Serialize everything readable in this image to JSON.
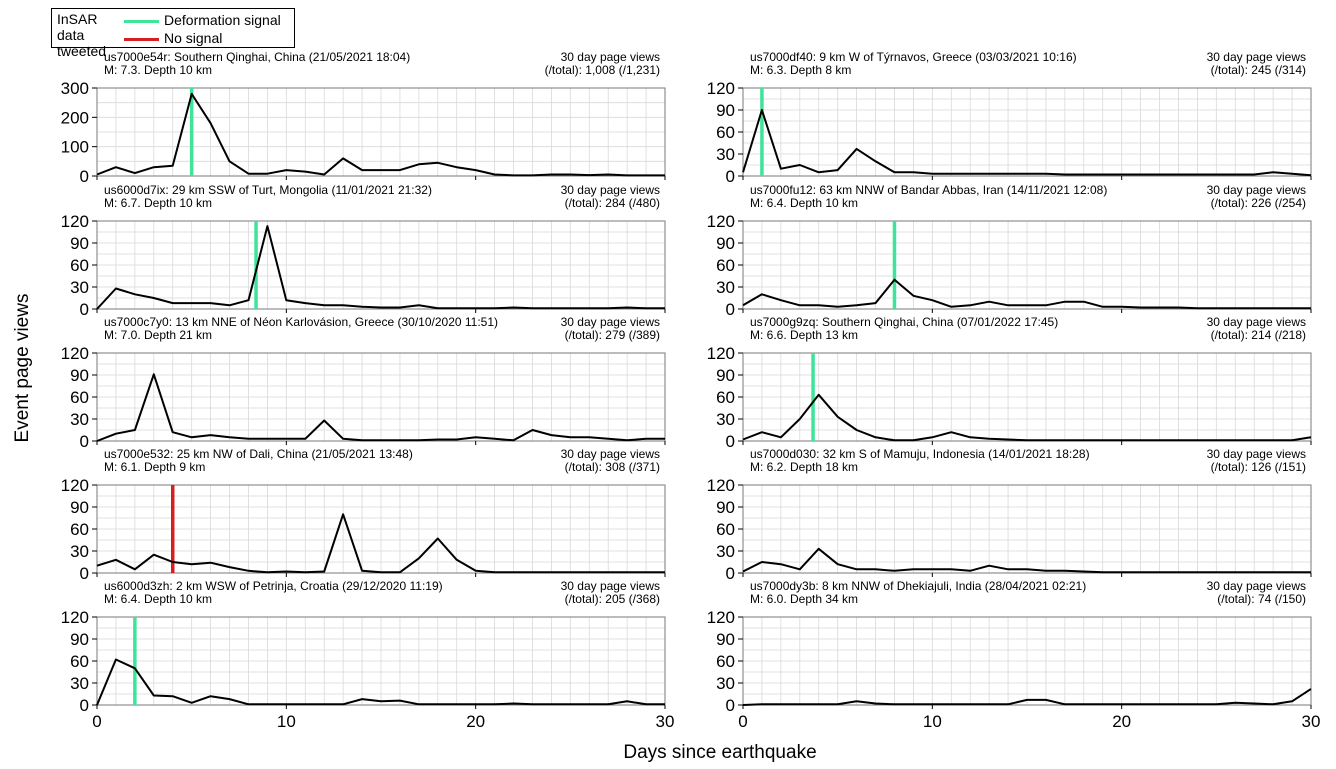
{
  "legend": {
    "title": "InSAR data tweeted",
    "items": [
      {
        "label": "Deformation signal",
        "color": "#3ee49a"
      },
      {
        "label": "No signal",
        "color": "#d62020"
      }
    ]
  },
  "axes": {
    "xlabel": "Days since earthquake",
    "ylabel": "Event page views"
  },
  "chart_data": [
    {
      "type": "line",
      "id": "us7000e54r",
      "header": "us7000e54r: Southern Qinghai, China (21/05/2021 18:04)",
      "mag_depth": "M: 7.3. Depth 10 km",
      "views_label": "30 day page views",
      "views_value": "(/total): 1,008 (/1,231)",
      "ylim": [
        0,
        300
      ],
      "yticks": [
        0,
        100,
        200,
        300
      ],
      "xlim": [
        0,
        30
      ],
      "xticks": [
        0,
        10,
        20,
        30
      ],
      "grid": true,
      "signal_day": 5,
      "signal_type": "Deformation signal",
      "x": [
        0,
        1,
        2,
        3,
        4,
        5,
        6,
        7,
        8,
        9,
        10,
        11,
        12,
        13,
        14,
        15,
        16,
        17,
        18,
        19,
        20,
        21,
        22,
        23,
        24,
        25,
        26,
        27,
        28,
        29,
        30
      ],
      "values": [
        5,
        30,
        10,
        30,
        35,
        280,
        180,
        50,
        8,
        8,
        20,
        15,
        5,
        60,
        20,
        20,
        20,
        40,
        45,
        30,
        20,
        5,
        2,
        2,
        5,
        5,
        3,
        5,
        2,
        2,
        2
      ]
    },
    {
      "type": "line",
      "id": "us7000df40",
      "header": "us7000df40: 9 km W of Týrnavos, Greece (03/03/2021 10:16)",
      "mag_depth": "M: 6.3. Depth 8 km",
      "views_label": "30 day page views",
      "views_value": "(/total):  245 (/314)",
      "ylim": [
        0,
        120
      ],
      "yticks": [
        0,
        30,
        60,
        90,
        120
      ],
      "xlim": [
        0,
        30
      ],
      "xticks": [
        0,
        10,
        20,
        30
      ],
      "grid": true,
      "signal_day": 1,
      "signal_type": "Deformation signal",
      "x": [
        0,
        1,
        2,
        3,
        4,
        5,
        6,
        7,
        8,
        9,
        10,
        11,
        12,
        13,
        14,
        15,
        16,
        17,
        18,
        19,
        20,
        21,
        22,
        23,
        24,
        25,
        26,
        27,
        28,
        29,
        30
      ],
      "values": [
        5,
        90,
        10,
        15,
        5,
        8,
        37,
        20,
        5,
        5,
        3,
        3,
        3,
        3,
        3,
        3,
        3,
        2,
        2,
        2,
        2,
        2,
        2,
        2,
        2,
        2,
        2,
        2,
        5,
        3,
        1
      ]
    },
    {
      "type": "line",
      "id": "us6000d7ix",
      "header": "us6000d7ix: 29 km SSW of Turt, Mongolia (11/01/2021 21:32)",
      "mag_depth": "M: 6.7. Depth 10 km",
      "views_label": "30 day page views",
      "views_value": "(/total): 284 (/480)",
      "ylim": [
        0,
        120
      ],
      "yticks": [
        0,
        30,
        60,
        90,
        120
      ],
      "xlim": [
        0,
        30
      ],
      "xticks": [
        0,
        10,
        20,
        30
      ],
      "grid": true,
      "signal_day": 8.4,
      "signal_type": "Deformation signal",
      "x": [
        0,
        1,
        2,
        3,
        4,
        5,
        6,
        7,
        8,
        9,
        10,
        11,
        12,
        13,
        14,
        15,
        16,
        17,
        18,
        19,
        20,
        21,
        22,
        23,
        24,
        25,
        26,
        27,
        28,
        29,
        30
      ],
      "values": [
        0,
        28,
        20,
        15,
        8,
        8,
        8,
        5,
        12,
        113,
        12,
        8,
        5,
        5,
        3,
        2,
        2,
        5,
        1,
        1,
        1,
        1,
        2,
        1,
        1,
        1,
        1,
        1,
        2,
        1,
        1
      ]
    },
    {
      "type": "line",
      "id": "us7000fu12",
      "header": "us7000fu12: 63 km NNW of Bandar Abbas, Iran (14/11/2021 12:08)",
      "mag_depth": "M: 6.4. Depth 10 km",
      "views_label": "30 day page views",
      "views_value": "(/total):  226 (/254)",
      "ylim": [
        0,
        120
      ],
      "yticks": [
        0,
        30,
        60,
        90,
        120
      ],
      "xlim": [
        0,
        30
      ],
      "xticks": [
        0,
        10,
        20,
        30
      ],
      "grid": true,
      "signal_day": 8,
      "signal_type": "Deformation signal",
      "x": [
        0,
        1,
        2,
        3,
        4,
        5,
        6,
        7,
        8,
        9,
        10,
        11,
        12,
        13,
        14,
        15,
        16,
        17,
        18,
        19,
        20,
        21,
        22,
        23,
        24,
        25,
        26,
        27,
        28,
        29,
        30
      ],
      "values": [
        5,
        20,
        12,
        5,
        5,
        3,
        5,
        8,
        40,
        18,
        12,
        3,
        5,
        10,
        5,
        5,
        5,
        10,
        10,
        3,
        3,
        2,
        2,
        2,
        1,
        1,
        1,
        1,
        1,
        1,
        1
      ]
    },
    {
      "type": "line",
      "id": "us7000c7y0",
      "header": "us7000c7y0: 13 km NNE of Néon Karlovásion, Greece (30/10/2020 11:51)",
      "mag_depth": "M: 7.0. Depth 21 km",
      "views_label": "30 day page views",
      "views_value": "(/total):  279 (/389)",
      "ylim": [
        0,
        120
      ],
      "yticks": [
        0,
        30,
        60,
        90,
        120
      ],
      "xlim": [
        0,
        30
      ],
      "xticks": [
        0,
        10,
        20,
        30
      ],
      "grid": true,
      "signal_day": null,
      "signal_type": null,
      "x": [
        0,
        1,
        2,
        3,
        4,
        5,
        6,
        7,
        8,
        9,
        10,
        11,
        12,
        13,
        14,
        15,
        16,
        17,
        18,
        19,
        20,
        21,
        22,
        23,
        24,
        25,
        26,
        27,
        28,
        29,
        30
      ],
      "values": [
        0,
        10,
        15,
        91,
        12,
        5,
        8,
        5,
        3,
        3,
        3,
        3,
        28,
        3,
        1,
        1,
        1,
        1,
        2,
        2,
        5,
        3,
        1,
        15,
        8,
        5,
        5,
        3,
        1,
        3,
        3
      ]
    },
    {
      "type": "line",
      "id": "us7000g9zq",
      "header": "us7000g9zq: Southern Qinghai, China (07/01/2022 17:45)",
      "mag_depth": "M: 6.6. Depth 13 km",
      "views_label": "30 day page views",
      "views_value": "(/total): 214 (/218)",
      "ylim": [
        0,
        120
      ],
      "yticks": [
        0,
        30,
        60,
        90,
        120
      ],
      "xlim": [
        0,
        30
      ],
      "xticks": [
        0,
        10,
        20,
        30
      ],
      "grid": true,
      "signal_day": 3.7,
      "signal_type": "Deformation signal",
      "x": [
        0,
        1,
        2,
        3,
        4,
        5,
        6,
        7,
        8,
        9,
        10,
        11,
        12,
        13,
        14,
        15,
        16,
        17,
        18,
        19,
        20,
        21,
        22,
        23,
        24,
        25,
        26,
        27,
        28,
        29,
        30
      ],
      "values": [
        2,
        12,
        5,
        30,
        63,
        33,
        15,
        5,
        1,
        1,
        5,
        12,
        5,
        3,
        2,
        1,
        1,
        1,
        1,
        1,
        1,
        1,
        1,
        1,
        1,
        1,
        1,
        1,
        1,
        1,
        5
      ]
    },
    {
      "type": "line",
      "id": "us7000e532",
      "header": "us7000e532: 25 km NW of Dali, China (21/05/2021 13:48)",
      "mag_depth": "M: 6.1. Depth 9 km",
      "views_label": "30 day page views",
      "views_value": "(/total):  308 (/371)",
      "ylim": [
        0,
        120
      ],
      "yticks": [
        0,
        30,
        60,
        90,
        120
      ],
      "xlim": [
        0,
        30
      ],
      "xticks": [
        0,
        10,
        20,
        30
      ],
      "grid": true,
      "signal_day": 4,
      "signal_type": "No signal",
      "x": [
        0,
        1,
        2,
        3,
        4,
        5,
        6,
        7,
        8,
        9,
        10,
        11,
        12,
        13,
        14,
        15,
        16,
        17,
        18,
        19,
        20,
        21,
        22,
        23,
        24,
        25,
        26,
        27,
        28,
        29,
        30
      ],
      "values": [
        10,
        18,
        5,
        25,
        15,
        12,
        14,
        8,
        3,
        1,
        2,
        1,
        2,
        80,
        3,
        1,
        1,
        20,
        47,
        18,
        3,
        1,
        1,
        1,
        1,
        1,
        1,
        1,
        1,
        1,
        1
      ]
    },
    {
      "type": "line",
      "id": "us7000d030",
      "header": "us7000d030: 32 km S of Mamuju, Indonesia (14/01/2021 18:28)",
      "mag_depth": "M: 6.2. Depth 18 km",
      "views_label": "30 day page views",
      "views_value": "(/total): 126 (/151)",
      "ylim": [
        0,
        120
      ],
      "yticks": [
        0,
        30,
        60,
        90,
        120
      ],
      "xlim": [
        0,
        30
      ],
      "xticks": [
        0,
        10,
        20,
        30
      ],
      "grid": true,
      "signal_day": null,
      "signal_type": null,
      "x": [
        0,
        1,
        2,
        3,
        4,
        5,
        6,
        7,
        8,
        9,
        10,
        11,
        12,
        13,
        14,
        15,
        16,
        17,
        18,
        19,
        20,
        21,
        22,
        23,
        24,
        25,
        26,
        27,
        28,
        29,
        30
      ],
      "values": [
        2,
        15,
        12,
        5,
        33,
        12,
        5,
        5,
        3,
        5,
        5,
        5,
        3,
        10,
        5,
        5,
        3,
        3,
        2,
        1,
        1,
        1,
        1,
        1,
        1,
        1,
        1,
        1,
        1,
        1,
        1
      ]
    },
    {
      "type": "line",
      "id": "us6000d3zh",
      "header": "us6000d3zh: 2 km WSW of Petrinja, Croatia (29/12/2020 11:19)",
      "mag_depth": "M: 6.4. Depth 10 km",
      "views_label": "30 day page views",
      "views_value": "(/total): 205 (/368)",
      "ylim": [
        0,
        120
      ],
      "yticks": [
        0,
        30,
        60,
        90,
        120
      ],
      "xlim": [
        0,
        30
      ],
      "xticks": [
        0,
        10,
        20,
        30
      ],
      "grid": true,
      "signal_day": 2,
      "signal_type": "Deformation signal",
      "x": [
        0,
        1,
        2,
        3,
        4,
        5,
        6,
        7,
        8,
        9,
        10,
        11,
        12,
        13,
        14,
        15,
        16,
        17,
        18,
        19,
        20,
        21,
        22,
        23,
        24,
        25,
        26,
        27,
        28,
        29,
        30
      ],
      "values": [
        0,
        62,
        50,
        13,
        12,
        3,
        12,
        8,
        1,
        1,
        1,
        1,
        1,
        1,
        8,
        5,
        6,
        1,
        1,
        1,
        1,
        1,
        2,
        1,
        1,
        1,
        1,
        1,
        5,
        1,
        1
      ]
    },
    {
      "type": "line",
      "id": "us7000dy3b",
      "header": "us7000dy3b: 8 km NNW of Dhekiajuli, India (28/04/2021 02:21)",
      "mag_depth": "M: 6.0. Depth 34 km",
      "views_label": "30 day page views",
      "views_value": "(/total): 74 (/150)",
      "ylim": [
        0,
        120
      ],
      "yticks": [
        0,
        30,
        60,
        90,
        120
      ],
      "xlim": [
        0,
        30
      ],
      "xticks": [
        0,
        10,
        20,
        30
      ],
      "grid": true,
      "signal_day": null,
      "signal_type": null,
      "x": [
        0,
        1,
        2,
        3,
        4,
        5,
        6,
        7,
        8,
        9,
        10,
        11,
        12,
        13,
        14,
        15,
        16,
        17,
        18,
        19,
        20,
        21,
        22,
        23,
        24,
        25,
        26,
        27,
        28,
        29,
        30
      ],
      "values": [
        0,
        1,
        1,
        1,
        1,
        1,
        5,
        2,
        1,
        1,
        1,
        1,
        1,
        1,
        1,
        7,
        7,
        1,
        1,
        1,
        1,
        1,
        1,
        1,
        1,
        1,
        3,
        2,
        1,
        5,
        22
      ]
    }
  ]
}
